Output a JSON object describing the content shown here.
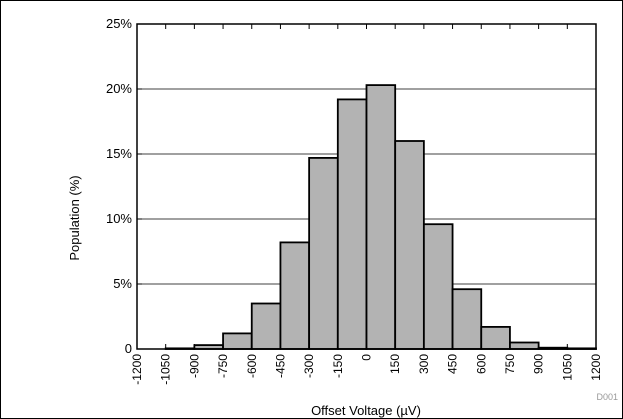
{
  "chart_data": {
    "type": "bar",
    "xlabel": "Offset Voltage (µV)",
    "ylabel": "Population (%)",
    "footnote": "D001",
    "x_ticks": [
      "-1200",
      "-1050",
      "-900",
      "-750",
      "-600",
      "-450",
      "-300",
      "-150",
      "0",
      "150",
      "300",
      "450",
      "600",
      "750",
      "900",
      "1050",
      "1200"
    ],
    "y_ticks": [
      "0",
      "5%",
      "10%",
      "15%",
      "20%",
      "25%"
    ],
    "xlim": [
      -1200,
      1200
    ],
    "ylim": [
      0,
      25
    ],
    "grid": "horizontal",
    "bins": [
      {
        "x0": -1200,
        "x1": -1050,
        "value": 0
      },
      {
        "x0": -1050,
        "x1": -900,
        "value": 0.05
      },
      {
        "x0": -900,
        "x1": -750,
        "value": 0.3
      },
      {
        "x0": -750,
        "x1": -600,
        "value": 1.2
      },
      {
        "x0": -600,
        "x1": -450,
        "value": 3.5
      },
      {
        "x0": -450,
        "x1": -300,
        "value": 8.2
      },
      {
        "x0": -300,
        "x1": -150,
        "value": 14.7
      },
      {
        "x0": -150,
        "x1": 0,
        "value": 19.2
      },
      {
        "x0": 0,
        "x1": 150,
        "value": 20.3
      },
      {
        "x0": 150,
        "x1": 300,
        "value": 16.0
      },
      {
        "x0": 300,
        "x1": 450,
        "value": 9.6
      },
      {
        "x0": 450,
        "x1": 600,
        "value": 4.6
      },
      {
        "x0": 600,
        "x1": 750,
        "value": 1.7
      },
      {
        "x0": 750,
        "x1": 900,
        "value": 0.5
      },
      {
        "x0": 900,
        "x1": 1050,
        "value": 0.1
      },
      {
        "x0": 1050,
        "x1": 1200,
        "value": 0.05
      }
    ],
    "bar_color": "#b3b3b3"
  }
}
